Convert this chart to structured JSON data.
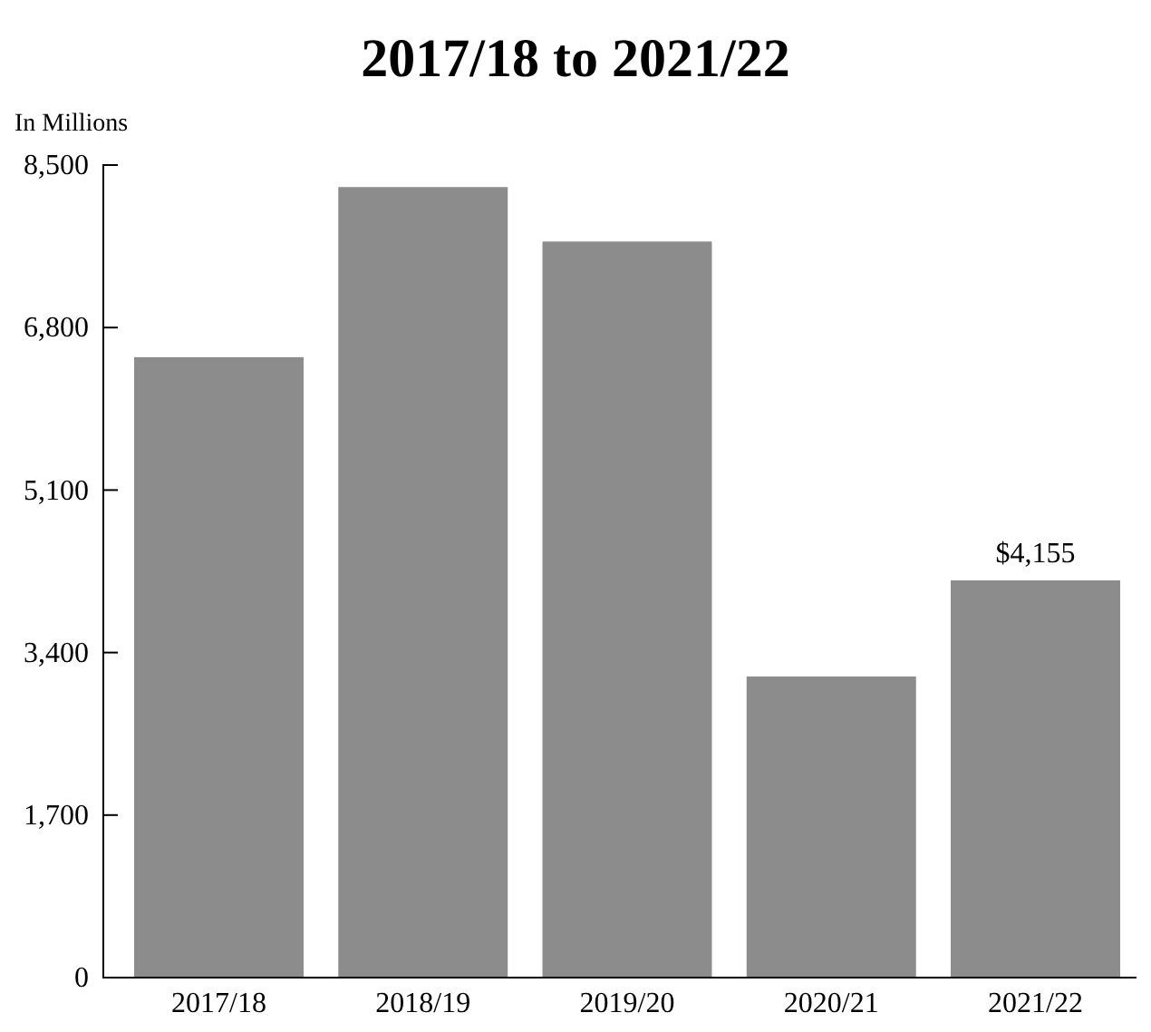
{
  "chart_data": {
    "type": "bar",
    "title": "2017/18 to 2021/22",
    "ylabel": "In Millions",
    "categories": [
      "2017/18",
      "2018/19",
      "2019/20",
      "2020/21",
      "2021/22"
    ],
    "values": [
      6490,
      8270,
      7700,
      3150,
      4155
    ],
    "value_labels": [
      null,
      null,
      null,
      null,
      "$4,155"
    ],
    "color": "#8c8c8c",
    "ylim": [
      0,
      8500
    ],
    "yticks": [
      {
        "value": 0,
        "label": "0"
      },
      {
        "value": 1700,
        "label": "1,700"
      },
      {
        "value": 3400,
        "label": "3,400"
      },
      {
        "value": 5100,
        "label": "5,100"
      },
      {
        "value": 6800,
        "label": "6,800"
      },
      {
        "value": 8500,
        "label": "8,500"
      }
    ],
    "grid": false
  }
}
